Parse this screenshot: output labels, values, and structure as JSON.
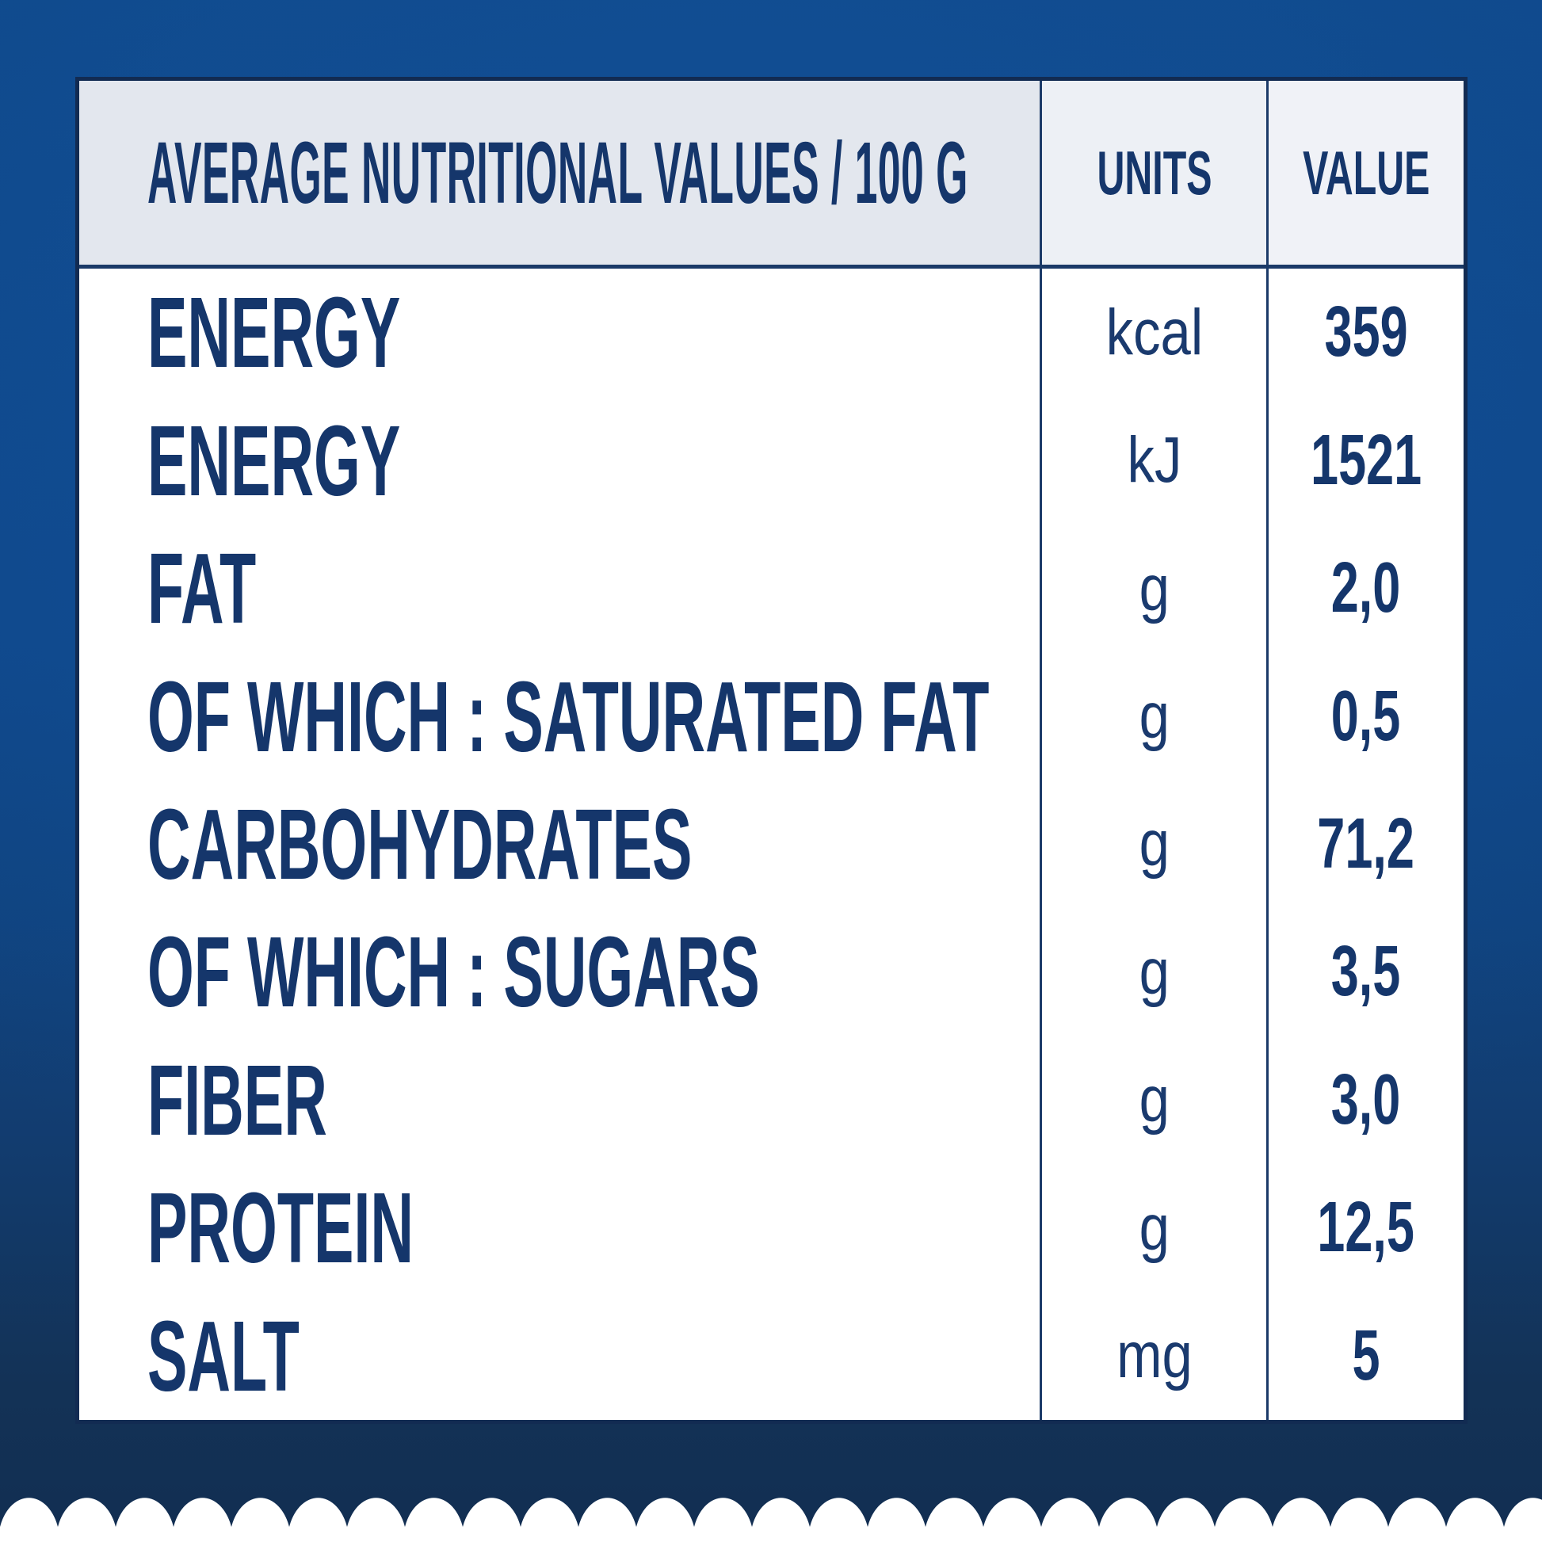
{
  "table": {
    "header": {
      "title": "AVERAGE NUTRITIONAL VALUES / 100 G",
      "units_label": "UNITS",
      "value_label": "VALUE"
    },
    "rows": [
      {
        "label": "ENERGY",
        "unit": "kcal",
        "value": "359"
      },
      {
        "label": "ENERGY",
        "unit": "kJ",
        "value": "1521"
      },
      {
        "label": "FAT",
        "unit": "g",
        "value": "2,0"
      },
      {
        "label": "OF WHICH : SATURATED FAT",
        "unit": "g",
        "value": "0,5"
      },
      {
        "label": "CARBOHYDRATES",
        "unit": "g",
        "value": "71,2"
      },
      {
        "label": "OF WHICH : SUGARS",
        "unit": "g",
        "value": "3,5"
      },
      {
        "label": "FIBER",
        "unit": "g",
        "value": "3,0"
      },
      {
        "label": "PROTEIN",
        "unit": "g",
        "value": "12,5"
      },
      {
        "label": "SALT",
        "unit": "mg",
        "value": "5"
      }
    ]
  },
  "colors": {
    "background_blue_top": "#104a8d",
    "background_blue_bottom": "#122e52",
    "table_border_navy": "#1b3a68",
    "header_cell_gray": "#e3e7ee",
    "header_cell_light": "#f0f2f7",
    "body_white": "#ffffff",
    "text_navy": "#15366b",
    "scallop_white": "#ffffff"
  }
}
